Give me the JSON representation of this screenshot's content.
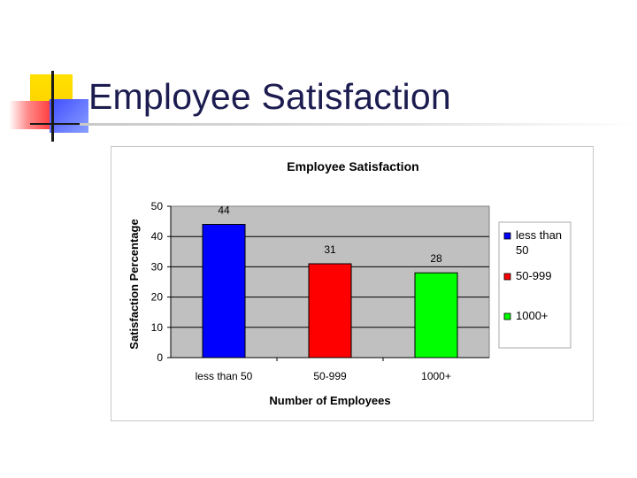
{
  "slide": {
    "title": "Employee Satisfaction"
  },
  "chart_data": {
    "type": "bar",
    "title": "Employee Satisfaction",
    "xlabel": "Number of Employees",
    "ylabel": "Satisfaction Percentage",
    "categories": [
      "less than 50",
      "50-999",
      "1000+"
    ],
    "values": [
      44,
      31,
      28
    ],
    "data_labels": [
      "44",
      "31",
      "28"
    ],
    "ylim": [
      0,
      50
    ],
    "yticks": [
      0,
      10,
      20,
      30,
      40,
      50
    ],
    "grid": true,
    "legend_position": "right",
    "colors": [
      "#0000ff",
      "#ff0000",
      "#00ff00"
    ],
    "plot_background": "#c0c0c0",
    "legend": [
      {
        "line1": "less than",
        "line2": "50",
        "color": "#0000ff"
      },
      {
        "line1": "50-999",
        "line2": "",
        "color": "#ff0000"
      },
      {
        "line1": "1000+",
        "line2": "",
        "color": "#00ff00"
      }
    ]
  }
}
